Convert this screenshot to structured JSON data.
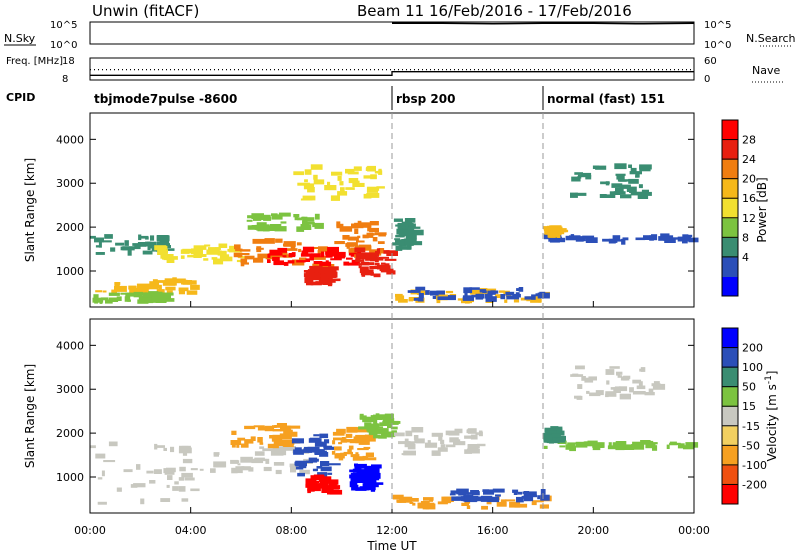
{
  "header": {
    "title_left": "Unwin (fitACF)",
    "title_right": "Beam 11  16/Feb/2016 - 17/Feb/2016"
  },
  "chart_data": [
    {
      "type": "line",
      "panel": "noise",
      "left_label": "N.Sky",
      "right_label": "N.Search",
      "left_ticks": [
        "10^5",
        "10^0"
      ],
      "right_ticks": [
        "10^5",
        "10^0"
      ],
      "series": [
        {
          "name": "N.Search",
          "style": "dotted",
          "x_hours": [
            12,
            14,
            16,
            18,
            20,
            22,
            24
          ],
          "log10_value": [
            4.7,
            4.7,
            4.6,
            4.7,
            4.7,
            4.6,
            4.7
          ]
        }
      ]
    },
    {
      "type": "line",
      "panel": "frequency",
      "left_label": "Freq. [MHz]",
      "right_label": "Nave",
      "left_ticks": [
        "18",
        "8"
      ],
      "right_ticks": [
        "60",
        "0"
      ],
      "series": [
        {
          "name": "Freq",
          "x_hours": [
            0,
            12,
            12,
            24
          ],
          "value_mhz": [
            9.5,
            9.5,
            11.5,
            11.5
          ]
        },
        {
          "name": "Nave",
          "style": "dotted",
          "x_hours": [
            0,
            24
          ],
          "value": [
            28,
            28
          ]
        }
      ]
    },
    {
      "type": "table",
      "panel": "cpid",
      "label": "CPID",
      "segments": [
        {
          "start_hour": 0,
          "text": "tbjmode7pulse -8600"
        },
        {
          "start_hour": 12,
          "text": "rbsp 200"
        },
        {
          "start_hour": 18,
          "text": "normal (fast) 151"
        }
      ]
    },
    {
      "type": "heatmap",
      "panel": "power",
      "ylabel": "Slant Range [km]",
      "yticks": [
        1000,
        2000,
        3000,
        4000
      ],
      "ylim": [
        180,
        4600
      ],
      "xlim_hours": [
        0,
        24
      ],
      "colorbar": {
        "label": "Power [dB]",
        "ticks": [
          "28",
          "24",
          "20",
          "16",
          "12",
          "8",
          "4"
        ],
        "colors": [
          "#0000ff",
          "#2b4fb8",
          "#3a8d72",
          "#7cc340",
          "#f2e030",
          "#f6b81a",
          "#f07d10",
          "#e82010",
          "#ff0000"
        ]
      },
      "regions": [
        {
          "x0": 0.0,
          "x1": 3.0,
          "y0": 1400,
          "y1": 1800,
          "color": "#3a8d72"
        },
        {
          "x0": 0.2,
          "x1": 4.0,
          "y0": 500,
          "y1": 800,
          "color": "#f6b81a"
        },
        {
          "x0": 0.0,
          "x1": 3.0,
          "y0": 300,
          "y1": 500,
          "color": "#7cc340"
        },
        {
          "x0": 2.5,
          "x1": 6.0,
          "y0": 1200,
          "y1": 1600,
          "color": "#f2e030"
        },
        {
          "x0": 5.5,
          "x1": 9.5,
          "y0": 1100,
          "y1": 1700,
          "color": "#f07d10"
        },
        {
          "x0": 7.0,
          "x1": 10.5,
          "y0": 1150,
          "y1": 1500,
          "color": "#ff0000"
        },
        {
          "x0": 8.5,
          "x1": 9.5,
          "y0": 700,
          "y1": 1100,
          "color": "#e82010"
        },
        {
          "x0": 9.5,
          "x1": 11.5,
          "y0": 1300,
          "y1": 2100,
          "color": "#f07d10"
        },
        {
          "x0": 10.5,
          "x1": 11.8,
          "y0": 900,
          "y1": 1500,
          "color": "#e82010"
        },
        {
          "x0": 6.0,
          "x1": 9.0,
          "y0": 1900,
          "y1": 2300,
          "color": "#7cc340"
        },
        {
          "x0": 8.0,
          "x1": 11.5,
          "y0": 2600,
          "y1": 3400,
          "color": "#f2e030"
        },
        {
          "x0": 12.0,
          "x1": 12.8,
          "y0": 1500,
          "y1": 2200,
          "color": "#3a8d72"
        },
        {
          "x0": 12.0,
          "x1": 18.0,
          "y0": 300,
          "y1": 550,
          "color": "#f6b81a"
        },
        {
          "x0": 12.5,
          "x1": 18.0,
          "y0": 350,
          "y1": 600,
          "color": "#2b4fb8"
        },
        {
          "x0": 18.0,
          "x1": 24.0,
          "y0": 1650,
          "y1": 1800,
          "color": "#2b4fb8"
        },
        {
          "x0": 18.0,
          "x1": 18.6,
          "y0": 1800,
          "y1": 2000,
          "color": "#f6b81a"
        },
        {
          "x0": 19.0,
          "x1": 22.0,
          "y0": 2700,
          "y1": 3400,
          "color": "#3a8d72"
        }
      ]
    },
    {
      "type": "heatmap",
      "panel": "velocity",
      "ylabel": "Slant Range [km]",
      "yticks": [
        1000,
        2000,
        3000,
        4000
      ],
      "ylim": [
        180,
        4600
      ],
      "xlim_hours": [
        0,
        24
      ],
      "xticks": [
        "00:00",
        "04:00",
        "08:00",
        "12:00",
        "16:00",
        "20:00",
        "00:00"
      ],
      "xlabel": "Time UT",
      "colorbar": {
        "label": "Velocity [m s^-1]",
        "ticks": [
          "200",
          "100",
          "50",
          "15",
          "-15",
          "-50",
          "-100",
          "-200"
        ],
        "colors": [
          "#ff0000",
          "#f05010",
          "#f6a020",
          "#f2d060",
          "#c8c8c0",
          "#7cc340",
          "#3a8d72",
          "#2b4fb8",
          "#0000ff"
        ]
      },
      "regions": [
        {
          "x0": 0.0,
          "x1": 4.0,
          "y0": 400,
          "y1": 1800,
          "color": "#c8c8c0"
        },
        {
          "x0": 4.0,
          "x1": 8.5,
          "y0": 1100,
          "y1": 1700,
          "color": "#c8c8c0"
        },
        {
          "x0": 5.5,
          "x1": 8.0,
          "y0": 1700,
          "y1": 2200,
          "color": "#f6a020"
        },
        {
          "x0": 8.0,
          "x1": 9.5,
          "y0": 1000,
          "y1": 2000,
          "color": "#2b4fb8"
        },
        {
          "x0": 8.5,
          "x1": 9.6,
          "y0": 650,
          "y1": 1000,
          "color": "#ff0000"
        },
        {
          "x0": 9.6,
          "x1": 11.0,
          "y0": 1400,
          "y1": 2100,
          "color": "#f6a020"
        },
        {
          "x0": 10.3,
          "x1": 11.2,
          "y0": 700,
          "y1": 1300,
          "color": "#0000ff"
        },
        {
          "x0": 10.5,
          "x1": 12.0,
          "y0": 1900,
          "y1": 2400,
          "color": "#7cc340"
        },
        {
          "x0": 12.0,
          "x1": 18.0,
          "y0": 300,
          "y1": 550,
          "color": "#f6a020"
        },
        {
          "x0": 14.0,
          "x1": 18.0,
          "y0": 450,
          "y1": 700,
          "color": "#2b4fb8"
        },
        {
          "x0": 12.0,
          "x1": 15.5,
          "y0": 1500,
          "y1": 2100,
          "color": "#c8c8c0"
        },
        {
          "x0": 18.0,
          "x1": 24.0,
          "y0": 1650,
          "y1": 1800,
          "color": "#7cc340"
        },
        {
          "x0": 18.0,
          "x1": 18.5,
          "y0": 1800,
          "y1": 2100,
          "color": "#3a8d72"
        },
        {
          "x0": 19.0,
          "x1": 22.5,
          "y0": 2800,
          "y1": 3500,
          "color": "#c8c8c0"
        }
      ]
    }
  ]
}
